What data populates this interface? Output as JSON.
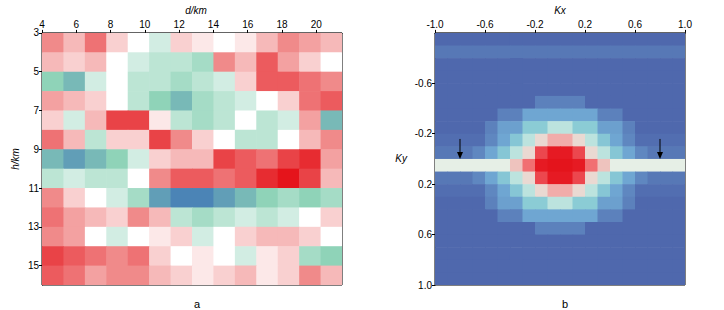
{
  "chart_data": [
    {
      "type": "heatmap",
      "caption": "a",
      "x_label": "d/km",
      "y_label": "h/km",
      "xlim": [
        4,
        21.5
      ],
      "xticks": [
        4,
        6,
        8,
        10,
        12,
        14,
        16,
        18,
        20
      ],
      "ylim": [
        3,
        16
      ],
      "yticks": [
        3,
        5,
        7,
        9,
        11,
        13,
        15
      ],
      "x_bins": [
        4,
        5.25,
        6.5,
        7.75,
        9,
        10.25,
        11.5,
        12.75,
        14,
        15.25,
        16.5,
        17.75,
        19,
        20.25,
        21.5
      ],
      "y_bins": [
        3,
        4,
        5,
        6,
        7,
        8,
        9,
        10,
        11,
        12,
        13,
        14,
        15,
        16
      ],
      "zlim": [
        -1,
        1
      ],
      "cells": [
        [
          0.5,
          0.3,
          0.6,
          0.2,
          0.0,
          -0.2,
          0.2,
          0.1,
          0.0,
          0.1,
          0.3,
          0.5,
          0.4,
          0.3
        ],
        [
          0.3,
          0.2,
          0.3,
          0.0,
          -0.2,
          -0.3,
          -0.3,
          -0.4,
          0.5,
          0.3,
          0.7,
          0.4,
          0.2,
          0.0
        ],
        [
          -0.5,
          -0.6,
          -0.2,
          0.0,
          -0.3,
          -0.3,
          -0.4,
          -0.3,
          -0.2,
          0.2,
          0.7,
          0.7,
          0.6,
          0.5
        ],
        [
          0.4,
          0.3,
          0.2,
          0.0,
          -0.3,
          -0.5,
          -0.6,
          -0.4,
          -0.3,
          -0.2,
          0.0,
          0.2,
          0.6,
          0.7
        ],
        [
          0.2,
          -0.2,
          0.3,
          0.8,
          0.8,
          0.1,
          -0.3,
          -0.4,
          -0.3,
          0.0,
          -0.3,
          -0.2,
          0.4,
          -0.6
        ],
        [
          0.6,
          0.3,
          -0.3,
          0.2,
          0.2,
          0.8,
          0.5,
          0.2,
          0.0,
          -0.3,
          -0.3,
          0.0,
          0.3,
          0.5
        ],
        [
          -0.6,
          -0.7,
          -0.6,
          -0.5,
          -0.2,
          0.2,
          0.3,
          0.3,
          0.8,
          0.7,
          0.6,
          0.8,
          0.9,
          0.4
        ],
        [
          -0.3,
          -0.2,
          -0.3,
          -0.3,
          0.0,
          0.5,
          0.7,
          0.7,
          0.6,
          0.7,
          0.9,
          1.0,
          0.8,
          0.3
        ],
        [
          0.5,
          0.2,
          0.0,
          -0.2,
          -0.4,
          -0.7,
          -0.8,
          -0.8,
          -0.7,
          -0.6,
          -0.5,
          -0.4,
          -0.5,
          -0.4
        ],
        [
          0.6,
          0.4,
          0.3,
          0.2,
          0.5,
          0.3,
          -0.3,
          -0.4,
          -0.3,
          -0.2,
          -0.3,
          -0.2,
          0.0,
          0.2
        ],
        [
          0.5,
          0.4,
          0.0,
          -0.2,
          0.0,
          0.1,
          0.2,
          -0.2,
          0.0,
          0.2,
          0.3,
          0.3,
          0.2,
          0.0
        ],
        [
          0.8,
          0.7,
          0.6,
          0.5,
          0.6,
          0.2,
          0.0,
          0.1,
          0.0,
          -0.2,
          0.1,
          0.2,
          -0.4,
          -0.5
        ],
        [
          0.7,
          0.6,
          0.4,
          0.5,
          0.5,
          0.3,
          0.2,
          0.1,
          0.2,
          0.3,
          0.1,
          0.2,
          0.5,
          0.3
        ]
      ]
    },
    {
      "type": "heatmap",
      "caption": "b",
      "x_label": "Kx",
      "y_label": "Ky",
      "xlim": [
        -1,
        1
      ],
      "xticks": [
        {
          "value": -1,
          "label": "-1.0"
        },
        -0.6,
        -0.2,
        0.2,
        0.6,
        {
          "value": 1,
          "label": "1.0"
        }
      ],
      "ylim": [
        -1,
        1
      ],
      "yticks": [
        -0.6,
        -0.2,
        0.2,
        0.6,
        {
          "value": 1,
          "label": "1.0"
        }
      ],
      "x_bins": [
        -1,
        -0.9,
        -0.8,
        -0.7,
        -0.6,
        -0.5,
        -0.4,
        -0.3,
        -0.2,
        -0.1,
        0,
        0.1,
        0.2,
        0.3,
        0.4,
        0.5,
        0.6,
        0.7,
        0.8,
        0.9,
        1
      ],
      "y_bins": [
        -1,
        -0.9,
        -0.8,
        -0.7,
        -0.6,
        -0.5,
        -0.4,
        -0.3,
        -0.2,
        -0.1,
        0,
        0.1,
        0.2,
        0.3,
        0.4,
        0.5,
        0.6,
        0.7,
        0.8,
        0.9,
        1
      ],
      "zlim": [
        0,
        1
      ],
      "arrows": [
        {
          "x": -0.8,
          "y": 0.0
        },
        {
          "x": 0.8,
          "y": 0.0
        }
      ],
      "cells": [
        [
          0.1,
          0.1,
          0.1,
          0.1,
          0.1,
          0.1,
          0.1,
          0.1,
          0.1,
          0.1,
          0.1,
          0.1,
          0.1,
          0.1,
          0.1,
          0.1,
          0.1,
          0.1,
          0.1,
          0.1
        ],
        [
          0.15,
          0.15,
          0.15,
          0.15,
          0.15,
          0.15,
          0.15,
          0.15,
          0.15,
          0.15,
          0.15,
          0.15,
          0.15,
          0.15,
          0.15,
          0.15,
          0.15,
          0.15,
          0.15,
          0.15
        ],
        [
          0.1,
          0.1,
          0.1,
          0.1,
          0.1,
          0.1,
          0.1,
          0.1,
          0.1,
          0.1,
          0.1,
          0.1,
          0.1,
          0.1,
          0.1,
          0.1,
          0.1,
          0.1,
          0.1,
          0.1
        ],
        [
          0.1,
          0.1,
          0.1,
          0.1,
          0.1,
          0.1,
          0.1,
          0.1,
          0.1,
          0.1,
          0.1,
          0.1,
          0.1,
          0.1,
          0.1,
          0.1,
          0.1,
          0.1,
          0.1,
          0.1
        ],
        [
          0.1,
          0.1,
          0.1,
          0.1,
          0.1,
          0.1,
          0.1,
          0.1,
          0.1,
          0.1,
          0.1,
          0.1,
          0.1,
          0.1,
          0.1,
          0.1,
          0.1,
          0.1,
          0.1,
          0.1
        ],
        [
          0.1,
          0.1,
          0.1,
          0.1,
          0.1,
          0.1,
          0.1,
          0.1,
          0.18,
          0.18,
          0.18,
          0.18,
          0.1,
          0.1,
          0.1,
          0.1,
          0.1,
          0.1,
          0.1,
          0.1
        ],
        [
          0.1,
          0.1,
          0.1,
          0.1,
          0.1,
          0.18,
          0.18,
          0.3,
          0.3,
          0.3,
          0.3,
          0.3,
          0.3,
          0.18,
          0.18,
          0.1,
          0.1,
          0.1,
          0.1,
          0.1
        ],
        [
          0.1,
          0.1,
          0.1,
          0.1,
          0.18,
          0.28,
          0.28,
          0.42,
          0.42,
          0.5,
          0.5,
          0.42,
          0.42,
          0.28,
          0.28,
          0.18,
          0.1,
          0.1,
          0.1,
          0.1
        ],
        [
          0.12,
          0.12,
          0.12,
          0.12,
          0.2,
          0.3,
          0.4,
          0.5,
          0.6,
          0.7,
          0.7,
          0.6,
          0.5,
          0.4,
          0.3,
          0.2,
          0.12,
          0.12,
          0.12,
          0.12
        ],
        [
          0.15,
          0.15,
          0.15,
          0.2,
          0.3,
          0.4,
          0.5,
          0.6,
          0.85,
          0.95,
          0.95,
          0.85,
          0.6,
          0.5,
          0.4,
          0.3,
          0.2,
          0.15,
          0.15,
          0.15
        ],
        [
          0.55,
          0.55,
          0.55,
          0.55,
          0.55,
          0.55,
          0.65,
          0.8,
          0.95,
          1.0,
          1.0,
          0.95,
          0.8,
          0.65,
          0.55,
          0.55,
          0.55,
          0.55,
          0.55,
          0.55
        ],
        [
          0.15,
          0.15,
          0.15,
          0.2,
          0.3,
          0.4,
          0.5,
          0.6,
          0.85,
          0.95,
          0.95,
          0.85,
          0.6,
          0.5,
          0.4,
          0.3,
          0.2,
          0.15,
          0.15,
          0.15
        ],
        [
          0.12,
          0.12,
          0.12,
          0.12,
          0.2,
          0.3,
          0.4,
          0.5,
          0.6,
          0.7,
          0.7,
          0.6,
          0.5,
          0.4,
          0.3,
          0.2,
          0.12,
          0.12,
          0.12,
          0.12
        ],
        [
          0.1,
          0.1,
          0.1,
          0.1,
          0.18,
          0.28,
          0.28,
          0.42,
          0.42,
          0.5,
          0.5,
          0.42,
          0.42,
          0.28,
          0.28,
          0.18,
          0.1,
          0.1,
          0.1,
          0.1
        ],
        [
          0.1,
          0.1,
          0.1,
          0.1,
          0.1,
          0.18,
          0.18,
          0.3,
          0.3,
          0.3,
          0.3,
          0.3,
          0.3,
          0.18,
          0.18,
          0.1,
          0.1,
          0.1,
          0.1,
          0.1
        ],
        [
          0.1,
          0.1,
          0.1,
          0.1,
          0.1,
          0.1,
          0.1,
          0.1,
          0.18,
          0.18,
          0.18,
          0.18,
          0.1,
          0.1,
          0.1,
          0.1,
          0.1,
          0.1,
          0.1,
          0.1
        ],
        [
          0.1,
          0.1,
          0.1,
          0.1,
          0.1,
          0.1,
          0.1,
          0.1,
          0.1,
          0.1,
          0.1,
          0.1,
          0.1,
          0.1,
          0.1,
          0.1,
          0.1,
          0.1,
          0.1,
          0.1
        ],
        [
          0.1,
          0.1,
          0.1,
          0.1,
          0.1,
          0.1,
          0.1,
          0.1,
          0.1,
          0.1,
          0.1,
          0.1,
          0.1,
          0.1,
          0.1,
          0.1,
          0.1,
          0.1,
          0.1,
          0.1
        ],
        [
          0.1,
          0.1,
          0.1,
          0.1,
          0.1,
          0.1,
          0.1,
          0.1,
          0.1,
          0.1,
          0.1,
          0.1,
          0.1,
          0.1,
          0.1,
          0.1,
          0.1,
          0.1,
          0.1,
          0.1
        ],
        [
          0.1,
          0.1,
          0.1,
          0.1,
          0.1,
          0.1,
          0.1,
          0.1,
          0.1,
          0.1,
          0.1,
          0.1,
          0.1,
          0.1,
          0.1,
          0.1,
          0.1,
          0.1,
          0.1,
          0.1
        ]
      ]
    }
  ]
}
